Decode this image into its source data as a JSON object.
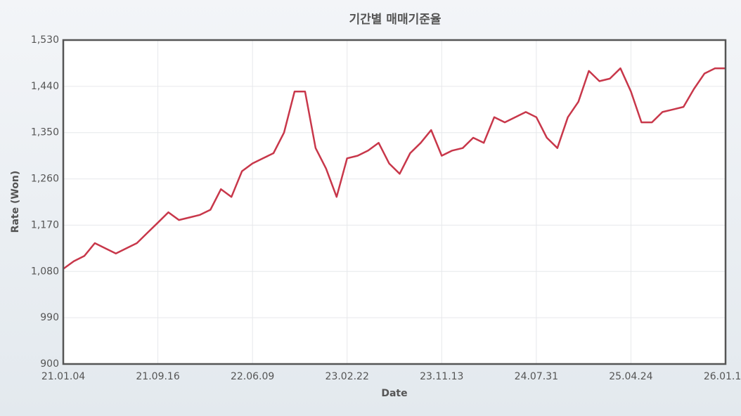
{
  "chart_data": {
    "type": "line",
    "title": "기간별 매매기준율",
    "x_label": "Date",
    "y_label": "Rate (Won)",
    "x": [
      "21.01.04",
      "21.02.01",
      "21.03.02",
      "21.03.30",
      "21.04.27",
      "21.05.25",
      "21.06.22",
      "21.07.20",
      "21.08.18",
      "21.09.16",
      "21.10.15",
      "21.11.12",
      "21.12.10",
      "22.01.10",
      "22.02.08",
      "22.03.11",
      "22.04.08",
      "22.05.10",
      "22.06.09",
      "22.07.07",
      "22.08.04",
      "22.09.02",
      "22.10.04",
      "22.11.01",
      "22.11.29",
      "22.12.27",
      "23.01.25",
      "23.02.22",
      "23.03.22",
      "23.04.19",
      "23.05.18",
      "23.06.16",
      "23.07.14",
      "23.08.11",
      "23.09.11",
      "23.10.12",
      "23.11.13",
      "23.12.11",
      "24.01.09",
      "24.02.07",
      "24.03.08",
      "24.04.05",
      "24.05.07",
      "24.06.04",
      "24.07.03",
      "24.07.31",
      "24.08.29",
      "24.09.30",
      "24.10.29",
      "24.11.26",
      "24.12.24",
      "25.01.24",
      "25.02.24",
      "25.03.24",
      "25.04.24",
      "25.05.23",
      "25.06.23",
      "25.07.21",
      "25.08.19",
      "25.09.17",
      "25.10.20",
      "25.11.17",
      "25.12.15",
      "26.01.13"
    ],
    "values": [
      1085,
      1100,
      1110,
      1135,
      1125,
      1115,
      1125,
      1135,
      1155,
      1175,
      1195,
      1180,
      1185,
      1190,
      1200,
      1240,
      1225,
      1275,
      1290,
      1300,
      1310,
      1350,
      1430,
      1430,
      1320,
      1280,
      1225,
      1300,
      1305,
      1315,
      1330,
      1290,
      1270,
      1310,
      1330,
      1355,
      1305,
      1315,
      1320,
      1340,
      1330,
      1380,
      1370,
      1380,
      1390,
      1380,
      1340,
      1320,
      1380,
      1410,
      1470,
      1450,
      1455,
      1475,
      1430,
      1370,
      1370,
      1390,
      1395,
      1400,
      1435,
      1465,
      1475,
      1475
    ],
    "color": "#c8374a",
    "xticks": [
      "21.01.04",
      "21.09.16",
      "22.06.09",
      "23.02.22",
      "23.11.13",
      "24.07.31",
      "25.04.24",
      "26.01.13"
    ],
    "ylim": [
      900,
      1530
    ],
    "yticks": [
      900,
      990,
      {
        "value": 1080,
        "label": "1,080"
      },
      {
        "value": 1170,
        "label": "1,170"
      },
      {
        "value": 1260,
        "label": "1,260"
      },
      {
        "value": 1350,
        "label": "1,350"
      },
      {
        "value": 1440,
        "label": "1,440"
      },
      {
        "value": 1530,
        "label": "1,530"
      }
    ],
    "grid": true
  }
}
